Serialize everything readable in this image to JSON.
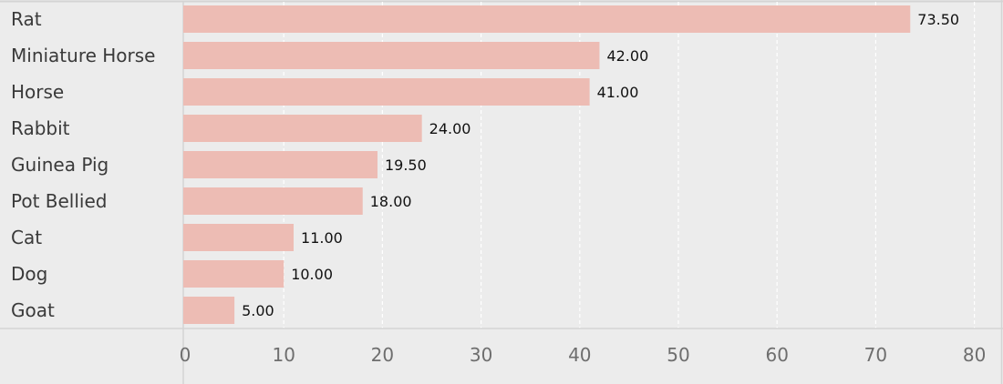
{
  "chart_data": {
    "type": "bar",
    "orientation": "horizontal",
    "title": "",
    "xlabel": "",
    "ylabel": "",
    "categories": [
      "Rat",
      "Miniature Horse",
      "Horse",
      "Rabbit",
      "Guinea Pig",
      "Pot Bellied",
      "Cat",
      "Dog",
      "Goat"
    ],
    "values": [
      73.5,
      42.0,
      41.0,
      24.0,
      19.5,
      18.0,
      11.0,
      10.0,
      5.0
    ],
    "value_labels": [
      "73.50",
      "42.00",
      "41.00",
      "24.00",
      "19.50",
      "18.00",
      "11.00",
      "10.00",
      "5.00"
    ],
    "xlim": [
      0,
      80
    ],
    "x_ticks": [
      0,
      10,
      20,
      30,
      40,
      50,
      60,
      70,
      80
    ],
    "x_tick_labels": [
      "0",
      "10",
      "20",
      "30",
      "40",
      "50",
      "60",
      "70",
      "80"
    ],
    "grid": true,
    "legend": false,
    "colors": {
      "bar": "#edbcb4",
      "background": "#ececec",
      "grid": "#ffffff",
      "axis": "#d4d4d4",
      "category_text": "#3a3a3a",
      "tick_text": "#6e6e6e",
      "value_text": "#111111"
    }
  }
}
